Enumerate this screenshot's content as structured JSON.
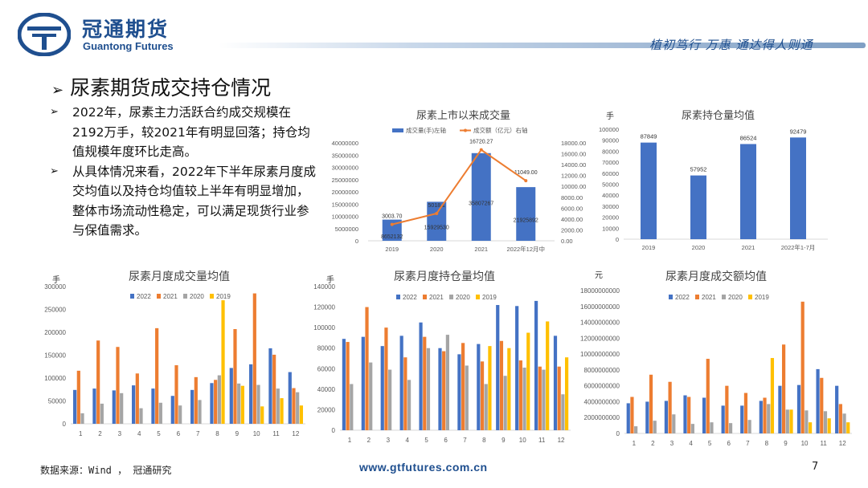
{
  "header": {
    "brand_cn": "冠通期货",
    "brand_en": "Guantong Futures",
    "slogan": "植初笃行 万惠 通达得人则通",
    "brand_color": "#1f4f8f"
  },
  "title": {
    "marker": "➢",
    "text": "尿素期货成交持仓情况"
  },
  "bullets": [
    {
      "marker": "➢",
      "text": "2022年，尿素主力活跃合约成交规模在2192万手，较2021年有明显回落；持仓均值规模年度环比走高。"
    },
    {
      "marker": "➢",
      "text": "从具体情况来看，2022年下半年尿素月度成交均值以及持仓均值较上半年有明显增加，整体市场流动性稳定，可以满足现货行业参与保值需求。"
    }
  ],
  "colors": {
    "s2022": "#4472c4",
    "s2021": "#ed7d31",
    "s2020": "#a5a5a5",
    "s2019": "#ffc000",
    "axis": "#d9d9d9",
    "text": "#595959"
  },
  "charts": {
    "volume": {
      "title": "尿素上市以来成交量",
      "legend_bar": "成交量(手)左轴",
      "legend_line": "成交额（亿元）右轴"
    },
    "oi_avg": {
      "title": "尿素持仓量均值",
      "unit": "手"
    },
    "monthly_vol": {
      "title": "尿素月度成交量均值",
      "unit": "手"
    },
    "monthly_oi": {
      "title": "尿素月度持仓量均值",
      "unit": "手"
    },
    "monthly_amt": {
      "title": "尿素月度成交额均值",
      "unit": "元"
    }
  },
  "chart_data": [
    {
      "id": "volume",
      "type": "bar",
      "title": "尿素上市以来成交量",
      "categories": [
        "2019",
        "2020",
        "2021",
        "2022年12月中"
      ],
      "series": [
        {
          "name": "成交量(手)左轴",
          "type": "bar",
          "axis": "left",
          "values": [
            8652132,
            15929530,
            35807267,
            21925892
          ],
          "labels": [
            "8652132",
            "15929530",
            "35807267",
            "21925892"
          ]
        },
        {
          "name": "成交额（亿元）右轴",
          "type": "line",
          "axis": "right",
          "values": [
            3003.7,
            5018.1,
            16720.27,
            11049.0
          ],
          "labels": [
            "3003.70",
            "5018.1",
            "16720.27",
            "11049.00"
          ]
        }
      ],
      "ylim_left": [
        0,
        40000000
      ],
      "yticks_left": [
        "0",
        "5000000",
        "10000000",
        "15000000",
        "20000000",
        "25000000",
        "30000000",
        "35000000",
        "40000000"
      ],
      "ylim_right": [
        0,
        18000
      ],
      "yticks_right": [
        "0.00",
        "2000.00",
        "4000.00",
        "6000.00",
        "8000.00",
        "10000.00",
        "12000.00",
        "14000.00",
        "16000.00",
        "18000.00"
      ],
      "legend": "top"
    },
    {
      "id": "oi_avg",
      "type": "bar",
      "title": "尿素持仓量均值",
      "categories": [
        "2019",
        "2020",
        "2021",
        "2022年1-7月"
      ],
      "series": [
        {
          "name": "持仓量均值",
          "values": [
            87849,
            57952,
            86524,
            92479
          ],
          "labels": [
            "87849",
            "57952",
            "86524",
            "92479"
          ]
        }
      ],
      "ylim": [
        0,
        100000
      ],
      "yticks": [
        "0",
        "10000",
        "20000",
        "30000",
        "40000",
        "50000",
        "60000",
        "70000",
        "80000",
        "90000",
        "100000"
      ],
      "ylabel": "手"
    },
    {
      "id": "monthly_vol",
      "type": "bar",
      "title": "尿素月度成交量均值",
      "categories": [
        "1",
        "2",
        "3",
        "4",
        "5",
        "6",
        "7",
        "8",
        "9",
        "10",
        "11",
        "12"
      ],
      "series": [
        {
          "name": "2022",
          "values": [
            74000,
            77000,
            73000,
            84000,
            77000,
            61000,
            74000,
            89000,
            122000,
            130000,
            165000,
            113000
          ]
        },
        {
          "name": "2021",
          "values": [
            116000,
            182000,
            168000,
            110000,
            209000,
            128000,
            102000,
            96000,
            207000,
            285000,
            151000,
            78000
          ]
        },
        {
          "name": "2020",
          "values": [
            23000,
            44000,
            67000,
            34000,
            46000,
            40000,
            52000,
            106000,
            88000,
            85000,
            77000,
            69000
          ]
        },
        {
          "name": "2019",
          "values": [
            null,
            null,
            null,
            null,
            null,
            null,
            null,
            270000,
            83000,
            38000,
            56000,
            40000
          ]
        }
      ],
      "ylim": [
        0,
        300000
      ],
      "yticks": [
        "0",
        "50000",
        "100000",
        "150000",
        "200000",
        "250000",
        "300000"
      ],
      "ylabel": "手",
      "legend": "top"
    },
    {
      "id": "monthly_oi",
      "type": "bar",
      "title": "尿素月度持仓量均值",
      "categories": [
        "1",
        "2",
        "3",
        "4",
        "5",
        "6",
        "7",
        "8",
        "9",
        "10",
        "11",
        "12"
      ],
      "series": [
        {
          "name": "2022",
          "values": [
            89000,
            91000,
            82000,
            92000,
            105000,
            80000,
            74000,
            84000,
            122000,
            121000,
            126000,
            92000
          ]
        },
        {
          "name": "2021",
          "values": [
            86000,
            120000,
            100000,
            71000,
            91000,
            77000,
            85000,
            67000,
            87000,
            68000,
            62000,
            62000
          ]
        },
        {
          "name": "2020",
          "values": [
            45000,
            66000,
            59000,
            49000,
            80000,
            93000,
            63000,
            45000,
            53000,
            61000,
            59000,
            35000
          ]
        },
        {
          "name": "2019",
          "values": [
            null,
            null,
            null,
            null,
            null,
            null,
            null,
            82000,
            80000,
            95000,
            106000,
            71000
          ]
        }
      ],
      "ylim": [
        0,
        140000
      ],
      "yticks": [
        "0",
        "20000",
        "40000",
        "60000",
        "80000",
        "100000",
        "120000",
        "140000"
      ],
      "ylabel": "手",
      "legend": "top"
    },
    {
      "id": "monthly_amt",
      "type": "bar",
      "title": "尿素月度成交额均值",
      "categories": [
        "1",
        "2",
        "3",
        "4",
        "5",
        "6",
        "7",
        "8",
        "9",
        "10",
        "11",
        "12"
      ],
      "series": [
        {
          "name": "2022",
          "values": [
            3800000000,
            4000000000,
            4100000000,
            4800000000,
            4500000000,
            3500000000,
            3500000000,
            4100000000,
            6000000000,
            6100000000,
            8100000000,
            6000000000
          ]
        },
        {
          "name": "2021",
          "values": [
            4600000000,
            7400000000,
            6500000000,
            4600000000,
            9400000000,
            6000000000,
            5100000000,
            4500000000,
            11200000000,
            16600000000,
            7000000000,
            3700000000
          ]
        },
        {
          "name": "2020",
          "values": [
            900000000,
            1600000000,
            2400000000,
            1200000000,
            1400000000,
            1300000000,
            1700000000,
            3700000000,
            3000000000,
            2900000000,
            2800000000,
            2500000000
          ]
        },
        {
          "name": "2019",
          "values": [
            null,
            null,
            null,
            null,
            null,
            null,
            null,
            9500000000,
            3000000000,
            1400000000,
            1900000000,
            1400000000
          ]
        }
      ],
      "ylim": [
        0,
        18000000000
      ],
      "yticks": [
        "0",
        "2000000000",
        "4000000000",
        "6000000000",
        "8000000000",
        "10000000000",
        "12000000000",
        "14000000000",
        "16000000000",
        "18000000000"
      ],
      "ylabel": "元",
      "legend": "top"
    }
  ],
  "footer": {
    "source": "数据来源：Wind ， 冠通研究",
    "url": "www.gtfutures.com.cn",
    "page": "7"
  }
}
